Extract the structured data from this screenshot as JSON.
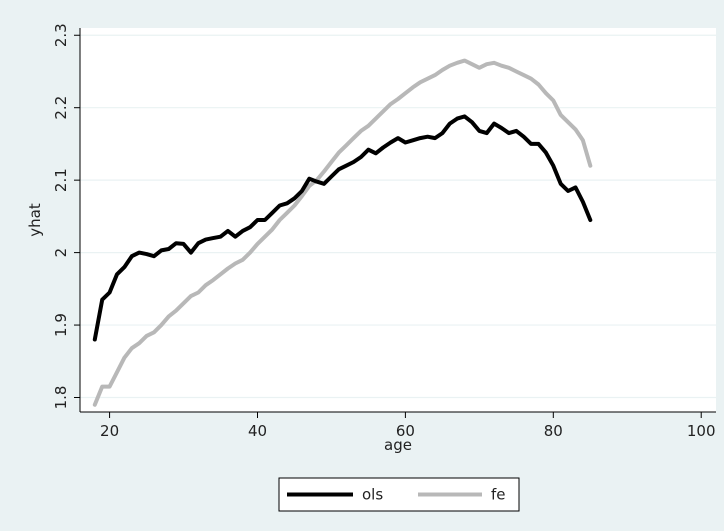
{
  "chart_data": {
    "type": "line",
    "xlabel": "age",
    "ylabel": "yhat",
    "xlim": [
      16,
      102
    ],
    "ylim": [
      1.78,
      2.31
    ],
    "x_ticks": [
      "20",
      "40",
      "60",
      "80",
      "100"
    ],
    "y_ticks": [
      "1.8",
      "1.9",
      "2",
      "2.1",
      "2.2",
      "2.3"
    ],
    "grid": "horizontal",
    "legend_position": "bottom",
    "colors": {
      "ols": "#000000",
      "fe": "#b8b8b8",
      "plot_bg": "#ffffff",
      "outer_bg": "#eaf2f3",
      "grid": "#eaf2f3"
    },
    "series": [
      {
        "name": "ols",
        "x": [
          18,
          19,
          20,
          21,
          22,
          23,
          24,
          25,
          26,
          27,
          28,
          29,
          30,
          31,
          32,
          33,
          34,
          35,
          36,
          37,
          38,
          39,
          40,
          41,
          42,
          43,
          44,
          45,
          46,
          47,
          48,
          49,
          50,
          51,
          52,
          53,
          54,
          55,
          56,
          57,
          58,
          59,
          60,
          61,
          62,
          63,
          64,
          65,
          66,
          67,
          68,
          69,
          70,
          71,
          72,
          73,
          74,
          75,
          76,
          77,
          78,
          79,
          80,
          81,
          82,
          83,
          84,
          85
        ],
        "y": [
          1.88,
          1.935,
          1.945,
          1.97,
          1.98,
          1.995,
          2.0,
          1.998,
          1.995,
          2.003,
          2.005,
          2.013,
          2.012,
          2.0,
          2.013,
          2.018,
          2.02,
          2.022,
          2.03,
          2.022,
          2.03,
          2.035,
          2.045,
          2.045,
          2.055,
          2.065,
          2.068,
          2.075,
          2.085,
          2.102,
          2.098,
          2.095,
          2.105,
          2.115,
          2.12,
          2.125,
          2.132,
          2.142,
          2.137,
          2.145,
          2.152,
          2.158,
          2.152,
          2.155,
          2.158,
          2.16,
          2.158,
          2.165,
          2.178,
          2.185,
          2.188,
          2.18,
          2.168,
          2.165,
          2.178,
          2.172,
          2.165,
          2.168,
          2.16,
          2.15,
          2.15,
          2.138,
          2.12,
          2.095,
          2.085,
          2.09,
          2.07,
          2.045
        ]
      },
      {
        "name": "fe",
        "x": [
          18,
          19,
          20,
          21,
          22,
          23,
          24,
          25,
          26,
          27,
          28,
          29,
          30,
          31,
          32,
          33,
          34,
          35,
          36,
          37,
          38,
          39,
          40,
          41,
          42,
          43,
          44,
          45,
          46,
          47,
          48,
          49,
          50,
          51,
          52,
          53,
          54,
          55,
          56,
          57,
          58,
          59,
          60,
          61,
          62,
          63,
          64,
          65,
          66,
          67,
          68,
          69,
          70,
          71,
          72,
          73,
          74,
          75,
          76,
          77,
          78,
          79,
          80,
          81,
          82,
          83,
          84,
          85
        ],
        "y": [
          1.79,
          1.815,
          1.815,
          1.835,
          1.855,
          1.868,
          1.875,
          1.885,
          1.89,
          1.9,
          1.912,
          1.92,
          1.93,
          1.94,
          1.945,
          1.955,
          1.962,
          1.97,
          1.978,
          1.985,
          1.99,
          2.0,
          2.012,
          2.022,
          2.032,
          2.045,
          2.055,
          2.065,
          2.078,
          2.092,
          2.1,
          2.112,
          2.125,
          2.138,
          2.148,
          2.158,
          2.168,
          2.175,
          2.185,
          2.195,
          2.205,
          2.212,
          2.22,
          2.228,
          2.235,
          2.24,
          2.245,
          2.252,
          2.258,
          2.262,
          2.265,
          2.26,
          2.255,
          2.26,
          2.262,
          2.258,
          2.255,
          2.25,
          2.245,
          2.24,
          2.232,
          2.22,
          2.21,
          2.19,
          2.18,
          2.17,
          2.155,
          2.12
        ]
      }
    ]
  }
}
